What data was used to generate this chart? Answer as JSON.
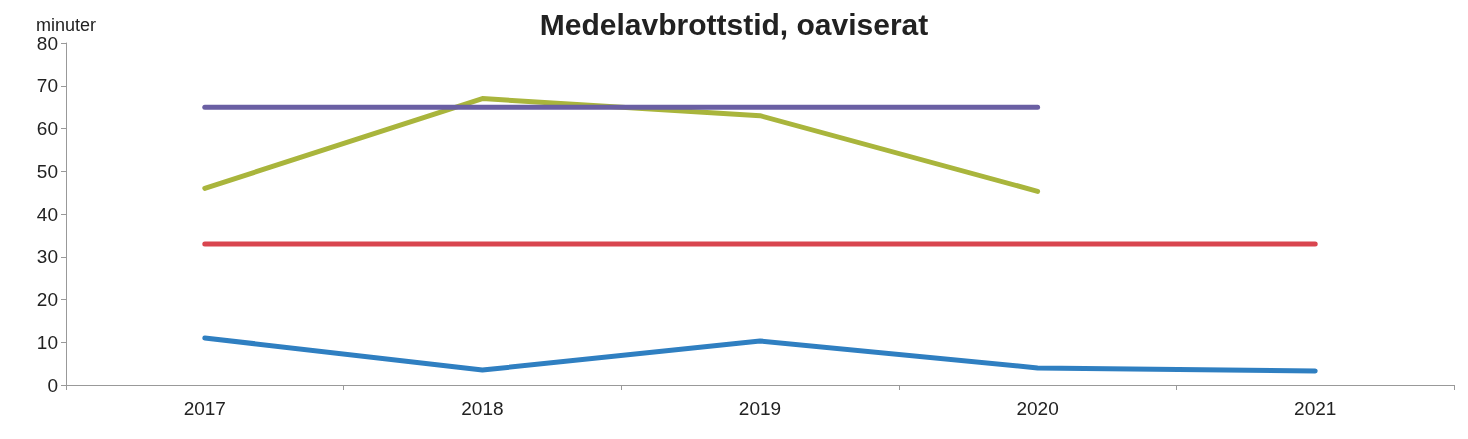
{
  "chart_data": {
    "type": "line",
    "title": "Medelavbrottstid, oaviserat",
    "ylabel": "minuter",
    "categories": [
      "2017",
      "2018",
      "2019",
      "2020",
      "2021"
    ],
    "series": [
      {
        "color": "#2f7fc1",
        "values": [
          11,
          3.5,
          10.3,
          4,
          3.3
        ]
      },
      {
        "color": "#d9454f",
        "values": [
          33,
          33,
          33,
          33,
          33
        ]
      },
      {
        "color": "#a9b53c",
        "values": [
          46,
          67,
          63,
          45.3,
          null
        ]
      },
      {
        "color": "#6a5fa3",
        "values": [
          65,
          65,
          65,
          65,
          null
        ]
      }
    ],
    "ylim": [
      0,
      80
    ],
    "yticks": [
      0,
      10,
      20,
      30,
      40,
      50,
      60,
      70,
      80
    ],
    "marker": "none",
    "line_style": "solid"
  }
}
